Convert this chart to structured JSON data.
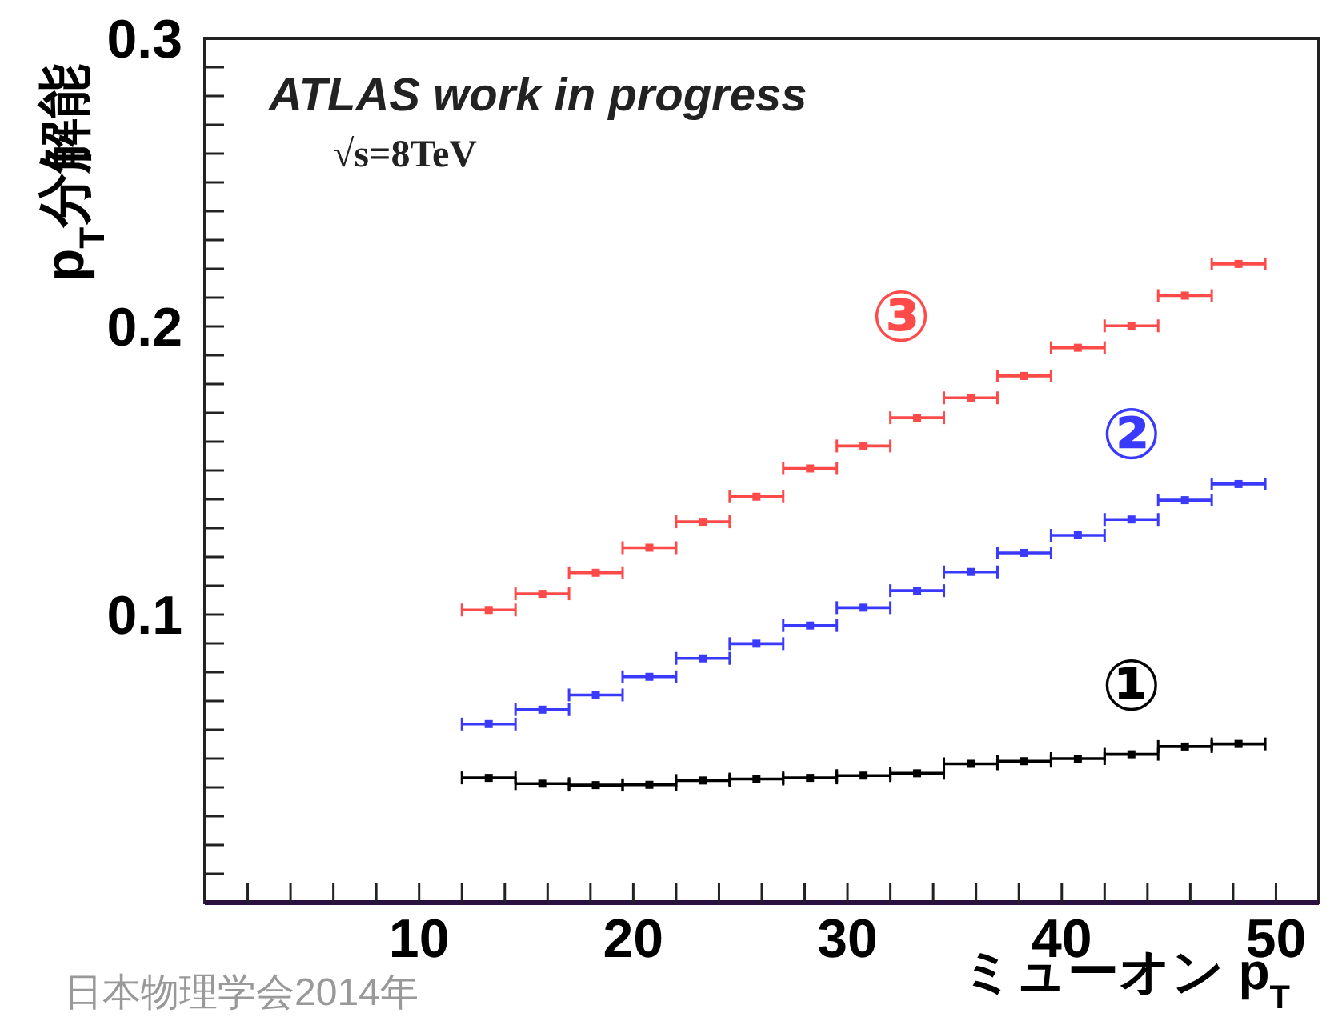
{
  "chart_data": {
    "type": "scatter",
    "title": "ATLAS work in progress",
    "subtitle": "√s=8TeV",
    "xlabel": "ミューオン p$_{T}$",
    "ylabel": "p$_{T}$分解能",
    "annotations": [
      "日本物理学会2014年"
    ],
    "x": [
      13.25,
      15.75,
      18.25,
      20.75,
      23.25,
      25.75,
      28.25,
      30.75,
      33.25,
      35.75,
      38.25,
      40.75,
      43.25,
      45.75,
      48.25
    ],
    "series": [
      {
        "name": "①",
        "color": "#000000",
        "values": [
          0.0433,
          0.0413,
          0.0408,
          0.0409,
          0.0424,
          0.0429,
          0.0433,
          0.0441,
          0.0449,
          0.0482,
          0.0491,
          0.05,
          0.0515,
          0.0542,
          0.0551
        ],
        "xerrors": [
          1.25,
          1.25,
          1.25,
          1.25,
          1.25,
          1.25,
          1.25,
          1.25,
          1.25,
          1.25,
          1.25,
          1.25,
          1.25,
          1.25,
          1.25
        ]
      },
      {
        "name": "②",
        "color": "#3a3aff",
        "values": [
          0.062,
          0.067,
          0.0721,
          0.0784,
          0.0848,
          0.0899,
          0.0962,
          0.1024,
          0.1083,
          0.1148,
          0.1214,
          0.1275,
          0.133,
          0.1397,
          0.1453
        ],
        "xerrors": [
          1.25,
          1.25,
          1.25,
          1.25,
          1.25,
          1.25,
          1.25,
          1.25,
          1.25,
          1.25,
          1.25,
          1.25,
          1.25,
          1.25,
          1.25
        ]
      },
      {
        "name": "③",
        "color": "#ff4a4a",
        "values": [
          0.1016,
          0.1072,
          0.1145,
          0.1232,
          0.1322,
          0.1409,
          0.1507,
          0.1585,
          0.1683,
          0.1752,
          0.1828,
          0.1926,
          0.2002,
          0.2107,
          0.2217
        ],
        "xerrors": [
          1.25,
          1.25,
          1.25,
          1.25,
          1.25,
          1.25,
          1.25,
          1.25,
          1.25,
          1.25,
          1.25,
          1.25,
          1.25,
          1.25,
          1.25
        ]
      }
    ],
    "marker": "square",
    "xlim": [
      0,
      52
    ],
    "ylim": [
      0,
      0.3
    ],
    "xticks": [
      {
        "value": 2,
        "label": null
      },
      {
        "value": 4,
        "label": null
      },
      {
        "value": 6,
        "label": null
      },
      {
        "value": 8,
        "label": null
      },
      10,
      {
        "value": 12,
        "label": null
      },
      {
        "value": 14,
        "label": null
      },
      {
        "value": 16,
        "label": null
      },
      {
        "value": 18,
        "label": null
      },
      20,
      {
        "value": 22,
        "label": null
      },
      {
        "value": 24,
        "label": null
      },
      {
        "value": 26,
        "label": null
      },
      {
        "value": 28,
        "label": null
      },
      30,
      {
        "value": 32,
        "label": null
      },
      {
        "value": 34,
        "label": null
      },
      {
        "value": 36,
        "label": null
      },
      {
        "value": 38,
        "label": null
      },
      40,
      {
        "value": 42,
        "label": null
      },
      {
        "value": 44,
        "label": null
      },
      {
        "value": 46,
        "label": null
      },
      {
        "value": 48,
        "label": null
      },
      50
    ],
    "yticks": [
      {
        "value": 0.01,
        "label": null
      },
      {
        "value": 0.02,
        "label": null
      },
      {
        "value": 0.03,
        "label": null
      },
      {
        "value": 0.04,
        "label": null
      },
      {
        "value": 0.05,
        "label": null
      },
      {
        "value": 0.06,
        "label": null
      },
      {
        "value": 0.07,
        "label": null
      },
      {
        "value": 0.08,
        "label": null
      },
      {
        "value": 0.09,
        "label": null
      },
      0.1,
      {
        "value": 0.11,
        "label": null
      },
      {
        "value": 0.12,
        "label": null
      },
      {
        "value": 0.13,
        "label": null
      },
      {
        "value": 0.14,
        "label": null
      },
      {
        "value": 0.15,
        "label": null
      },
      {
        "value": 0.16,
        "label": null
      },
      {
        "value": 0.17,
        "label": null
      },
      {
        "value": 0.18,
        "label": null
      },
      {
        "value": 0.19,
        "label": null
      },
      0.2,
      {
        "value": 0.21,
        "label": null
      },
      {
        "value": 0.22,
        "label": null
      },
      {
        "value": 0.23,
        "label": null
      },
      {
        "value": 0.24,
        "label": null
      },
      {
        "value": 0.25,
        "label": null
      },
      {
        "value": 0.26,
        "label": null
      },
      {
        "value": 0.27,
        "label": null
      },
      {
        "value": 0.28,
        "label": null
      },
      {
        "value": 0.29,
        "label": null
      },
      0.3
    ]
  }
}
